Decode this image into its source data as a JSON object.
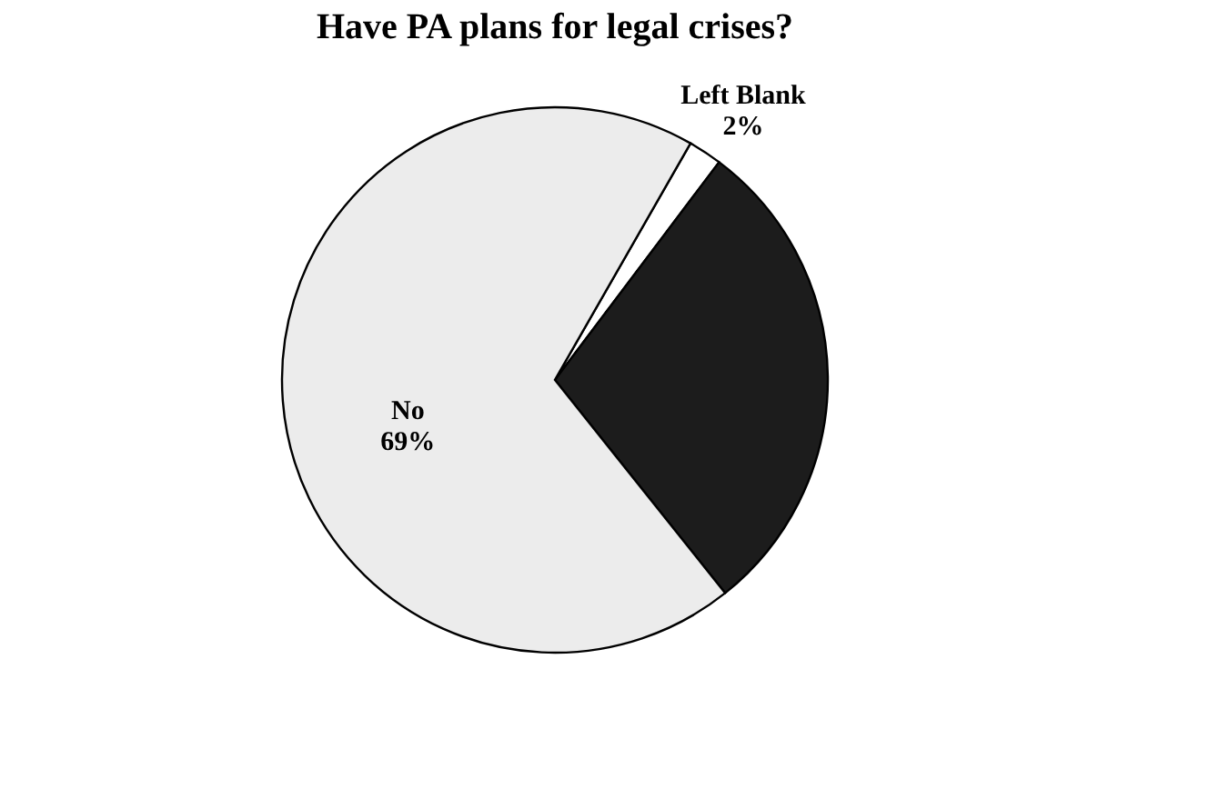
{
  "chart_data": {
    "type": "pie",
    "title": "Have PA plans for legal crises?",
    "categories": [
      "Left Blank",
      null,
      "No"
    ],
    "values": [
      2,
      29,
      69
    ],
    "colors": [
      "#ffffff",
      "#1c1c1c",
      "#ececec"
    ],
    "value_labels": [
      "2%",
      null,
      "69%"
    ],
    "legend": false
  }
}
